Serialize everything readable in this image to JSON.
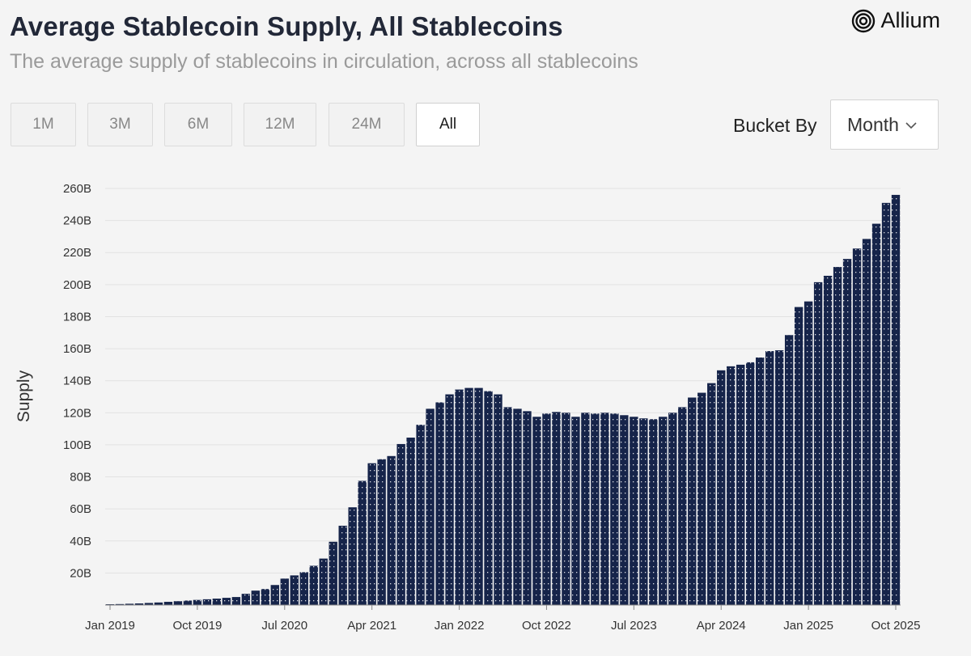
{
  "header": {
    "title": "Average Stablecoin Supply, All Stablecoins",
    "subtitle": "The average supply of stablecoins in circulation, across all stablecoins",
    "brand": "Allium"
  },
  "ranges": {
    "items": [
      "1M",
      "3M",
      "6M",
      "12M",
      "24M",
      "All"
    ],
    "selected": "All"
  },
  "bucket": {
    "label": "Bucket By",
    "value": "Month"
  },
  "colors": {
    "bar": "#16244a",
    "bar_dots": "#ffffff",
    "grid": "#e2e2e2",
    "axis": "#888888"
  },
  "chart_data": {
    "type": "bar",
    "title": "Average Stablecoin Supply, All Stablecoins",
    "xlabel": "",
    "ylabel": "Supply",
    "ylim": [
      0,
      260
    ],
    "y_unit": "B",
    "y_ticks": [
      "20B",
      "40B",
      "60B",
      "80B",
      "100B",
      "120B",
      "140B",
      "160B",
      "180B",
      "200B",
      "220B",
      "240B",
      "260B"
    ],
    "x_ticks": [
      "Jan 2019",
      "Oct 2019",
      "Jul 2020",
      "Apr 2021",
      "Jan 2022",
      "Oct 2022",
      "Jul 2023",
      "Apr 2024",
      "Jan 2025",
      "Oct 2025"
    ],
    "grid": true,
    "legend": "none",
    "categories": [
      "Jan 2019",
      "Feb 2019",
      "Mar 2019",
      "Apr 2019",
      "May 2019",
      "Jun 2019",
      "Jul 2019",
      "Aug 2019",
      "Sep 2019",
      "Oct 2019",
      "Nov 2019",
      "Dec 2019",
      "Jan 2020",
      "Feb 2020",
      "Mar 2020",
      "Apr 2020",
      "May 2020",
      "Jun 2020",
      "Jul 2020",
      "Aug 2020",
      "Sep 2020",
      "Oct 2020",
      "Nov 2020",
      "Dec 2020",
      "Jan 2021",
      "Feb 2021",
      "Mar 2021",
      "Apr 2021",
      "May 2021",
      "Jun 2021",
      "Jul 2021",
      "Aug 2021",
      "Sep 2021",
      "Oct 2021",
      "Nov 2021",
      "Dec 2021",
      "Jan 2022",
      "Feb 2022",
      "Mar 2022",
      "Apr 2022",
      "May 2022",
      "Jun 2022",
      "Jul 2022",
      "Aug 2022",
      "Sep 2022",
      "Oct 2022",
      "Nov 2022",
      "Dec 2022",
      "Jan 2023",
      "Feb 2023",
      "Mar 2023",
      "Apr 2023",
      "May 2023",
      "Jun 2023",
      "Jul 2023",
      "Aug 2023",
      "Sep 2023",
      "Oct 2023",
      "Nov 2023",
      "Dec 2023",
      "Jan 2024",
      "Feb 2024",
      "Mar 2024",
      "Apr 2024",
      "May 2024",
      "Jun 2024",
      "Jul 2024",
      "Aug 2024",
      "Sep 2024",
      "Oct 2024",
      "Nov 2024",
      "Dec 2024",
      "Jan 2025",
      "Feb 2025",
      "Mar 2025",
      "Apr 2025",
      "May 2025",
      "Jun 2025",
      "Jul 2025",
      "Aug 2025",
      "Sep 2025",
      "Oct 2025"
    ],
    "values": [
      0.5,
      0.6,
      0.8,
      1.0,
      1.3,
      1.6,
      2.0,
      2.4,
      2.8,
      3.2,
      3.6,
      4.0,
      4.5,
      5.0,
      7.0,
      9.0,
      10.0,
      12.5,
      16.5,
      18.5,
      20.5,
      24.5,
      29.0,
      39.5,
      49.5,
      61.0,
      77.5,
      88.5,
      91.0,
      93.0,
      100.5,
      104.5,
      112.5,
      122.5,
      126.5,
      131.5,
      134.5,
      135.5,
      135.5,
      133.5,
      131.5,
      123.5,
      122.5,
      121.0,
      117.5,
      119.5,
      120.5,
      120.0,
      117.5,
      120.0,
      119.5,
      120.0,
      119.5,
      118.5,
      117.5,
      116.5,
      116.0,
      117.5,
      120.0,
      123.5,
      129.5,
      132.5,
      138.5,
      146.5,
      149.0,
      150.0,
      151.5,
      154.5,
      158.5,
      159.0,
      168.5,
      186.0,
      189.5,
      201.5,
      205.5,
      211.0,
      216.0,
      222.5,
      228.5,
      238.0,
      251.0,
      256.0
    ]
  }
}
